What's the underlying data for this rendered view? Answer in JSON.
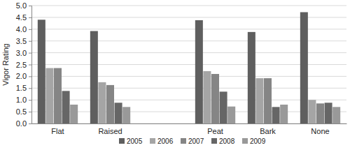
{
  "chart_data": {
    "type": "bar",
    "y_label": "Vigor Rating",
    "categories": [
      "Flat",
      "Raised",
      null,
      "Peat",
      "Bark",
      "None"
    ],
    "series": [
      {
        "name": "2005",
        "color": "#5f5f5f",
        "values": [
          4.4,
          3.92,
          null,
          4.38,
          3.88,
          4.72
        ]
      },
      {
        "name": "2006",
        "color": "#a5a5a5",
        "values": [
          2.35,
          1.75,
          null,
          2.22,
          1.92,
          1.0
        ]
      },
      {
        "name": "2007",
        "color": "#858585",
        "values": [
          2.35,
          1.63,
          null,
          2.1,
          1.92,
          0.85
        ]
      },
      {
        "name": "2008",
        "color": "#666666",
        "values": [
          1.38,
          0.88,
          null,
          1.35,
          0.7,
          0.88
        ]
      },
      {
        "name": "2009",
        "color": "#999999",
        "values": [
          0.8,
          0.7,
          null,
          0.72,
          0.8,
          0.7
        ]
      }
    ],
    "ylim": [
      0,
      5
    ],
    "yticks": [
      {
        "value": 0,
        "label": "0.0"
      },
      0.5,
      {
        "value": 1,
        "label": "1.0"
      },
      1.5,
      {
        "value": 2,
        "label": "2.0"
      },
      2.5,
      {
        "value": 3,
        "label": "3.0"
      },
      3.5,
      {
        "value": 4,
        "label": "4.0"
      },
      4.5,
      {
        "value": 5,
        "label": "5.0"
      }
    ],
    "grid": true,
    "legend": "bottom"
  }
}
